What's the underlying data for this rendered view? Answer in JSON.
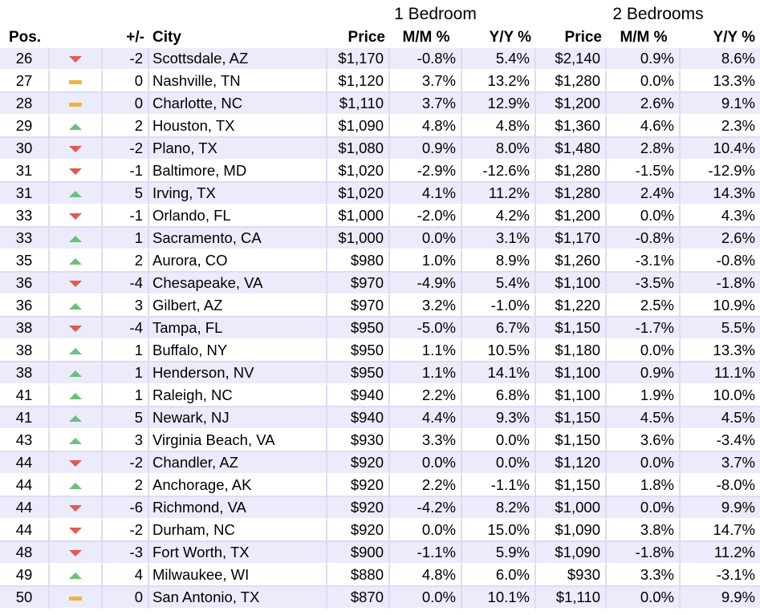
{
  "group_headers": {
    "one_bedroom": "1 Bedroom",
    "two_bedrooms": "2 Bedrooms"
  },
  "columns": {
    "pos": "Pos.",
    "change": "+/-",
    "city": "City",
    "price1": "Price",
    "mm1": "M/M %",
    "yy1": "Y/Y %",
    "price2": "Price",
    "mm2": "M/M %",
    "yy2": "Y/Y %"
  },
  "icon_names": {
    "up": "up-arrow-icon",
    "down": "down-arrow-icon",
    "same": "no-change-dash-icon"
  },
  "colors": {
    "up": "#6cc07a",
    "down": "#e25a4c",
    "same": "#f0b43a",
    "row_stripe": "#ebebfc",
    "grid": "#dcdcf4"
  },
  "rows": [
    {
      "pos": "26",
      "dir": "down",
      "change": "-2",
      "city": "Scottsdale, AZ",
      "p1": "$1,170",
      "mm1": "-0.8%",
      "yy1": "5.4%",
      "p2": "$2,140",
      "mm2": "0.9%",
      "yy2": "8.6%"
    },
    {
      "pos": "27",
      "dir": "same",
      "change": "0",
      "city": "Nashville, TN",
      "p1": "$1,120",
      "mm1": "3.7%",
      "yy1": "13.2%",
      "p2": "$1,280",
      "mm2": "0.0%",
      "yy2": "13.3%"
    },
    {
      "pos": "28",
      "dir": "same",
      "change": "0",
      "city": "Charlotte, NC",
      "p1": "$1,110",
      "mm1": "3.7%",
      "yy1": "12.9%",
      "p2": "$1,200",
      "mm2": "2.6%",
      "yy2": "9.1%"
    },
    {
      "pos": "29",
      "dir": "up",
      "change": "2",
      "city": "Houston, TX",
      "p1": "$1,090",
      "mm1": "4.8%",
      "yy1": "4.8%",
      "p2": "$1,360",
      "mm2": "4.6%",
      "yy2": "2.3%"
    },
    {
      "pos": "30",
      "dir": "down",
      "change": "-2",
      "city": "Plano, TX",
      "p1": "$1,080",
      "mm1": "0.9%",
      "yy1": "8.0%",
      "p2": "$1,480",
      "mm2": "2.8%",
      "yy2": "10.4%"
    },
    {
      "pos": "31",
      "dir": "down",
      "change": "-1",
      "city": "Baltimore, MD",
      "p1": "$1,020",
      "mm1": "-2.9%",
      "yy1": "-12.6%",
      "p2": "$1,280",
      "mm2": "-1.5%",
      "yy2": "-12.9%"
    },
    {
      "pos": "31",
      "dir": "up",
      "change": "5",
      "city": "Irving, TX",
      "p1": "$1,020",
      "mm1": "4.1%",
      "yy1": "11.2%",
      "p2": "$1,280",
      "mm2": "2.4%",
      "yy2": "14.3%"
    },
    {
      "pos": "33",
      "dir": "down",
      "change": "-1",
      "city": "Orlando, FL",
      "p1": "$1,000",
      "mm1": "-2.0%",
      "yy1": "4.2%",
      "p2": "$1,200",
      "mm2": "0.0%",
      "yy2": "4.3%"
    },
    {
      "pos": "33",
      "dir": "up",
      "change": "1",
      "city": "Sacramento, CA",
      "p1": "$1,000",
      "mm1": "0.0%",
      "yy1": "3.1%",
      "p2": "$1,170",
      "mm2": "-0.8%",
      "yy2": "2.6%"
    },
    {
      "pos": "35",
      "dir": "up",
      "change": "2",
      "city": "Aurora, CO",
      "p1": "$980",
      "mm1": "1.0%",
      "yy1": "8.9%",
      "p2": "$1,260",
      "mm2": "-3.1%",
      "yy2": "-0.8%"
    },
    {
      "pos": "36",
      "dir": "down",
      "change": "-4",
      "city": "Chesapeake, VA",
      "p1": "$970",
      "mm1": "-4.9%",
      "yy1": "5.4%",
      "p2": "$1,100",
      "mm2": "-3.5%",
      "yy2": "-1.8%"
    },
    {
      "pos": "36",
      "dir": "up",
      "change": "3",
      "city": "Gilbert, AZ",
      "p1": "$970",
      "mm1": "3.2%",
      "yy1": "-1.0%",
      "p2": "$1,220",
      "mm2": "2.5%",
      "yy2": "10.9%"
    },
    {
      "pos": "38",
      "dir": "down",
      "change": "-4",
      "city": "Tampa, FL",
      "p1": "$950",
      "mm1": "-5.0%",
      "yy1": "6.7%",
      "p2": "$1,150",
      "mm2": "-1.7%",
      "yy2": "5.5%"
    },
    {
      "pos": "38",
      "dir": "up",
      "change": "1",
      "city": "Buffalo, NY",
      "p1": "$950",
      "mm1": "1.1%",
      "yy1": "10.5%",
      "p2": "$1,180",
      "mm2": "0.0%",
      "yy2": "13.3%"
    },
    {
      "pos": "38",
      "dir": "up",
      "change": "1",
      "city": "Henderson, NV",
      "p1": "$950",
      "mm1": "1.1%",
      "yy1": "14.1%",
      "p2": "$1,100",
      "mm2": "0.9%",
      "yy2": "11.1%"
    },
    {
      "pos": "41",
      "dir": "up",
      "change": "1",
      "city": "Raleigh, NC",
      "p1": "$940",
      "mm1": "2.2%",
      "yy1": "6.8%",
      "p2": "$1,100",
      "mm2": "1.9%",
      "yy2": "10.0%"
    },
    {
      "pos": "41",
      "dir": "up",
      "change": "5",
      "city": "Newark, NJ",
      "p1": "$940",
      "mm1": "4.4%",
      "yy1": "9.3%",
      "p2": "$1,150",
      "mm2": "4.5%",
      "yy2": "4.5%"
    },
    {
      "pos": "43",
      "dir": "up",
      "change": "3",
      "city": "Virginia Beach, VA",
      "p1": "$930",
      "mm1": "3.3%",
      "yy1": "0.0%",
      "p2": "$1,150",
      "mm2": "3.6%",
      "yy2": "-3.4%"
    },
    {
      "pos": "44",
      "dir": "down",
      "change": "-2",
      "city": "Chandler, AZ",
      "p1": "$920",
      "mm1": "0.0%",
      "yy1": "0.0%",
      "p2": "$1,120",
      "mm2": "0.0%",
      "yy2": "3.7%"
    },
    {
      "pos": "44",
      "dir": "up",
      "change": "2",
      "city": "Anchorage, AK",
      "p1": "$920",
      "mm1": "2.2%",
      "yy1": "-1.1%",
      "p2": "$1,150",
      "mm2": "1.8%",
      "yy2": "-8.0%"
    },
    {
      "pos": "44",
      "dir": "down",
      "change": "-6",
      "city": "Richmond, VA",
      "p1": "$920",
      "mm1": "-4.2%",
      "yy1": "8.2%",
      "p2": "$1,000",
      "mm2": "0.0%",
      "yy2": "9.9%"
    },
    {
      "pos": "44",
      "dir": "down",
      "change": "-2",
      "city": "Durham, NC",
      "p1": "$920",
      "mm1": "0.0%",
      "yy1": "15.0%",
      "p2": "$1,090",
      "mm2": "3.8%",
      "yy2": "14.7%"
    },
    {
      "pos": "48",
      "dir": "down",
      "change": "-3",
      "city": "Fort Worth, TX",
      "p1": "$900",
      "mm1": "-1.1%",
      "yy1": "5.9%",
      "p2": "$1,090",
      "mm2": "-1.8%",
      "yy2": "11.2%"
    },
    {
      "pos": "49",
      "dir": "up",
      "change": "4",
      "city": "Milwaukee, WI",
      "p1": "$880",
      "mm1": "4.8%",
      "yy1": "6.0%",
      "p2": "$930",
      "mm2": "3.3%",
      "yy2": "-3.1%"
    },
    {
      "pos": "50",
      "dir": "same",
      "change": "0",
      "city": "San Antonio, TX",
      "p1": "$870",
      "mm1": "0.0%",
      "yy1": "10.1%",
      "p2": "$1,110",
      "mm2": "0.0%",
      "yy2": "9.9%"
    }
  ]
}
